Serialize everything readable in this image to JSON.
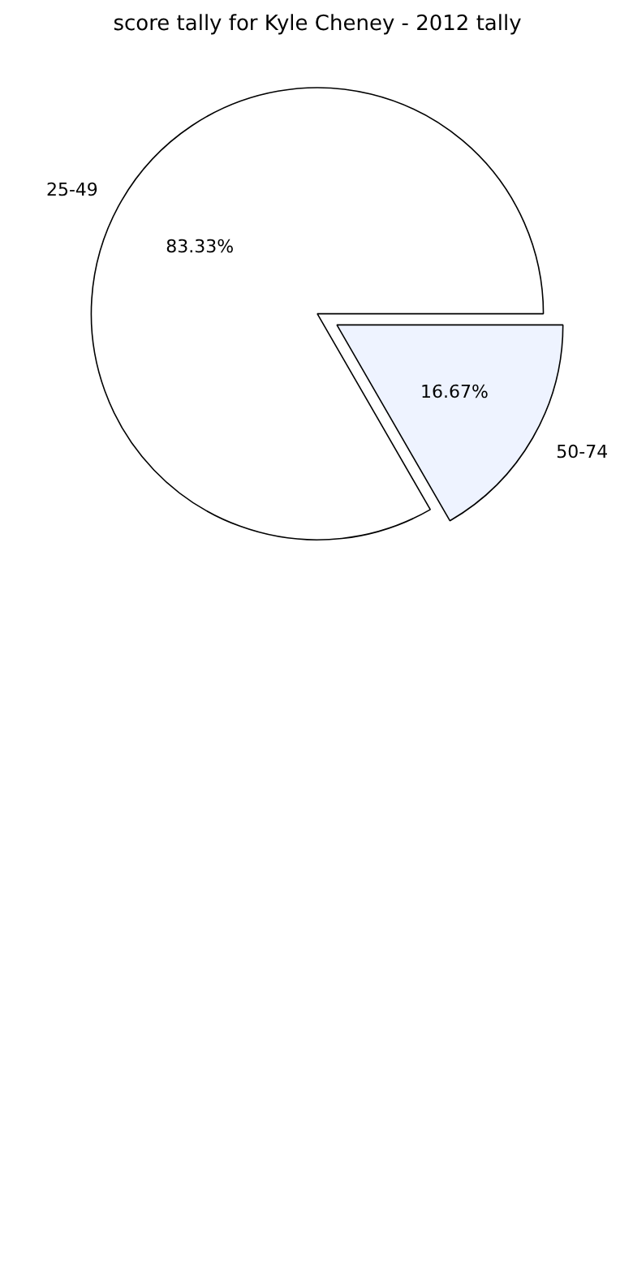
{
  "chart_data": {
    "type": "pie",
    "title": "score tally for Kyle Cheney - 2012 tally",
    "categories": [
      "25-49",
      "50-74"
    ],
    "values": [
      83.33,
      16.67
    ],
    "colors": [
      "#ffffff",
      "#eef3ff"
    ],
    "value_labels": [
      "83.33%",
      "16.67%"
    ]
  }
}
